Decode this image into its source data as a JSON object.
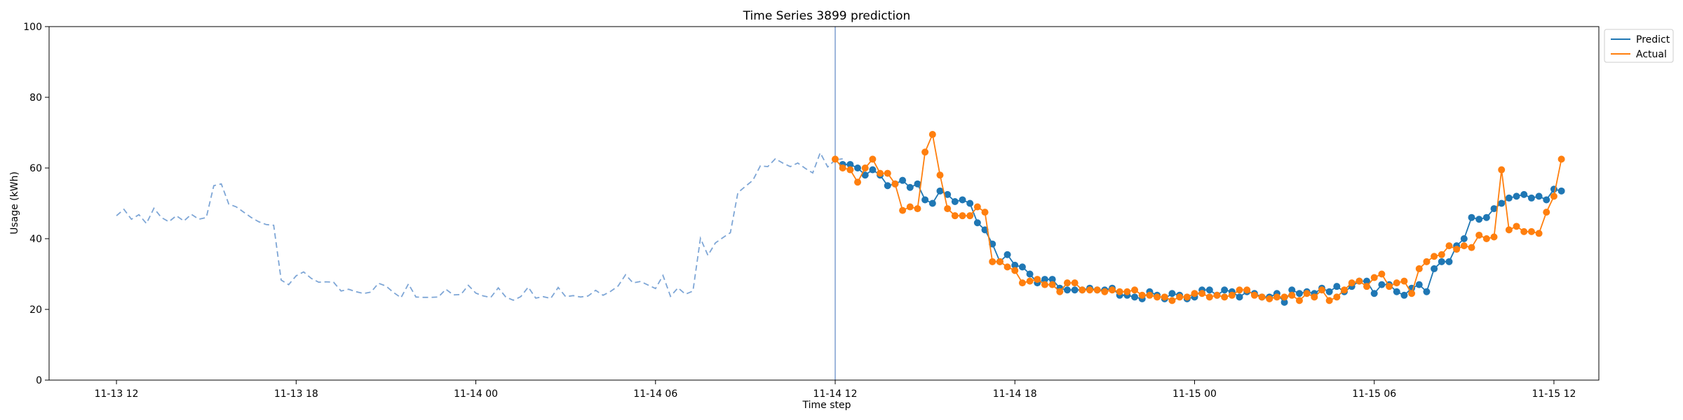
{
  "chart_data": {
    "type": "line",
    "title": "Time Series 3899 prediction",
    "xlabel": "Time step",
    "ylabel": "Usage (kWh)",
    "ylim": [
      0,
      100
    ],
    "xlim": [
      "2023-11-13 09:45",
      "2023-11-15 13:30"
    ],
    "yticks": [
      0,
      20,
      40,
      60,
      80,
      100
    ],
    "xticks": [
      {
        "t": "2023-11-13 12:00",
        "label": "11-13 12"
      },
      {
        "t": "2023-11-13 18:00",
        "label": "11-13 18"
      },
      {
        "t": "2023-11-14 00:00",
        "label": "11-14 00"
      },
      {
        "t": "2023-11-14 06:00",
        "label": "11-14 06"
      },
      {
        "t": "2023-11-14 12:00",
        "label": "11-14 12"
      },
      {
        "t": "2023-11-14 18:00",
        "label": "11-14 18"
      },
      {
        "t": "2023-11-15 00:00",
        "label": "11-15 00"
      },
      {
        "t": "2023-11-15 06:00",
        "label": "11-15 06"
      },
      {
        "t": "2023-11-15 12:00",
        "label": "11-15 12"
      }
    ],
    "grid": false,
    "legend_position": "top-right",
    "split_time": "2023-11-14 12:00",
    "colors": {
      "predict": "#1f77b4",
      "actual": "#ff7f0e",
      "history": "#7ea6d6",
      "split_line": "#7f9fd0"
    },
    "history": {
      "start": "2023-11-13 12:00",
      "step_minutes": 15,
      "style": "dashed",
      "values": [
        46.5,
        48.3,
        45.5,
        46.8,
        44.3,
        48.6,
        46.0,
        44.8,
        46.5,
        45.0,
        46.9,
        45.5,
        46.0,
        55.0,
        55.5,
        49.8,
        49.0,
        47.5,
        46.0,
        44.8,
        44.0,
        43.8,
        28.3,
        27.0,
        29.5,
        30.6,
        28.8,
        27.7,
        27.8,
        27.7,
        25.2,
        25.7,
        25.0,
        24.5,
        24.9,
        27.4,
        26.6,
        24.8,
        23.3,
        27.2,
        23.5,
        23.4,
        23.4,
        23.5,
        25.7,
        24.1,
        24.2,
        26.8,
        24.6,
        23.8,
        23.4,
        26.1,
        23.5,
        22.6,
        23.6,
        26.3,
        23.2,
        23.6,
        23.1,
        26.2,
        23.6,
        23.9,
        23.5,
        23.8,
        25.4,
        24.0,
        25.1,
        26.6,
        29.8,
        27.5,
        27.9,
        26.9,
        25.9,
        29.6,
        23.7,
        26.1,
        24.3,
        25.2,
        40.1,
        35.3,
        38.8,
        40.3,
        41.7,
        53.0,
        54.8,
        56.5,
        60.6,
        60.4,
        62.6,
        61.4,
        60.4,
        61.4,
        59.9,
        58.6,
        64.3,
        60.3,
        62.3,
        62.6
      ]
    },
    "forecast": {
      "start": "2023-11-14 12:00",
      "step_minutes": 15,
      "markers": true,
      "series": [
        {
          "name": "Predict",
          "values": [
            null,
            61.0,
            61.0,
            60.0,
            58.0,
            59.5,
            58.0,
            55.0,
            55.5,
            56.5,
            54.5,
            55.5,
            51.0,
            50.0,
            53.5,
            52.5,
            50.5,
            51.0,
            50.0,
            44.5,
            42.5,
            38.5,
            33.5,
            35.5,
            32.5,
            32.0,
            30.0,
            27.5,
            28.5,
            28.5,
            26.0,
            25.5,
            25.5,
            25.5,
            26.0,
            25.5,
            25.5,
            26.0,
            24.0,
            24.0,
            23.5,
            23.0,
            25.0,
            24.0,
            23.0,
            24.5,
            24.0,
            23.0,
            23.5,
            25.5,
            25.5,
            24.0,
            25.5,
            25.0,
            23.5,
            25.0,
            24.5,
            23.5,
            23.5,
            24.5,
            22.0,
            25.5,
            24.5,
            25.0,
            24.5,
            26.0,
            25.0,
            26.5,
            25.0,
            26.5,
            28.0,
            28.0,
            24.5,
            27.0,
            27.0,
            25.0,
            24.0,
            26.0,
            27.0,
            25.0,
            31.5,
            33.5,
            33.5,
            38.0,
            40.0,
            46.0,
            45.5,
            46.0,
            48.5,
            50.0,
            51.5,
            52.0,
            52.5,
            51.5,
            52.0,
            51.0,
            54.0,
            53.5
          ]
        },
        {
          "name": "Actual",
          "values": [
            62.5,
            60.0,
            59.5,
            56.0,
            60.0,
            62.5,
            58.5,
            58.5,
            55.5,
            48.0,
            49.0,
            48.5,
            64.5,
            69.5,
            58.0,
            48.5,
            46.5,
            46.5,
            46.5,
            49.0,
            47.5,
            33.5,
            33.5,
            32.0,
            31.0,
            27.5,
            28.0,
            28.5,
            27.0,
            27.0,
            25.0,
            27.5,
            27.5,
            25.5,
            25.5,
            25.5,
            25.0,
            25.5,
            25.0,
            25.0,
            25.5,
            24.0,
            24.0,
            23.5,
            23.5,
            22.5,
            23.5,
            23.5,
            24.5,
            24.5,
            23.5,
            24.0,
            23.5,
            24.0,
            25.5,
            25.5,
            24.0,
            23.5,
            23.0,
            23.5,
            23.5,
            24.0,
            22.5,
            24.5,
            23.5,
            25.5,
            22.5,
            23.5,
            25.5,
            27.5,
            28.0,
            26.5,
            29.0,
            30.0,
            26.5,
            27.5,
            28.0,
            24.5,
            31.5,
            33.5,
            35.0,
            35.5,
            38.0,
            37.0,
            38.0,
            37.5,
            41.0,
            40.0,
            40.5,
            59.5,
            42.5,
            43.5,
            42.0,
            42.0,
            41.5,
            47.5,
            52.0,
            62.5
          ]
        }
      ]
    }
  }
}
